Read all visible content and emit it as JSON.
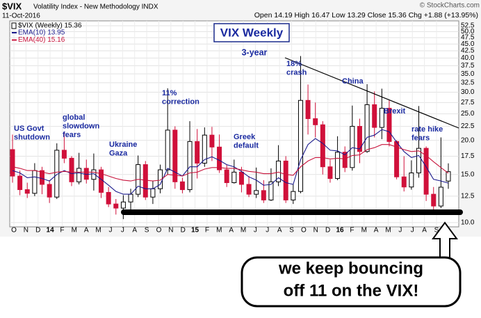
{
  "chart_data": {
    "type": "candlestick",
    "symbol": "$VIX",
    "title": "Volatility Index - New Methodology INDX",
    "date": "11-Oct-2016",
    "quote": "Open 14.19 High 16.47 Low 13.29 Close 15.36 Chg +1.88 (+13.95%)",
    "credit": "© StockCharts.com",
    "candle_label": "$VIX (Weekly) 15.36",
    "month_labels": [
      "O",
      "N",
      "D",
      "14",
      "F",
      "M",
      "A",
      "M",
      "J",
      "J",
      "A",
      "S",
      "O",
      "N",
      "D",
      "15",
      "F",
      "M",
      "A",
      "M",
      "J",
      "J",
      "A",
      "S",
      "O",
      "N",
      "D",
      "16",
      "F",
      "M",
      "A",
      "M",
      "J",
      "J",
      "A",
      "S"
    ],
    "open": [
      18.5,
      14.8,
      13.2,
      12.8,
      15.5,
      13.8,
      12.4,
      18.4,
      17.2,
      14.1,
      15.8,
      14.4,
      15.6,
      12.9,
      11.7,
      11.3,
      11.9,
      12.7,
      16.3,
      12.4,
      13.3,
      15.6,
      21.8,
      14.1,
      13.2,
      19.8,
      16.5,
      20.9,
      18.9,
      15.6,
      14,
      15.3,
      13.8,
      12.7,
      13.1,
      12.1,
      14.1,
      16.8,
      12.1,
      13,
      28,
      24,
      22.8,
      16,
      14.5,
      18.1,
      15.9,
      22.5,
      18.2,
      27,
      22.3,
      26.2,
      19.8,
      14.7,
      13.5,
      15.2,
      18.7,
      12.7,
      11.5,
      14.19
    ],
    "high": [
      21,
      15.5,
      14,
      16.5,
      16,
      14.3,
      19.5,
      21.5,
      17.5,
      18,
      17,
      17.9,
      16,
      13.5,
      12.2,
      12.6,
      13.3,
      17.6,
      16.8,
      14.2,
      16.3,
      31,
      22.5,
      14.6,
      23.5,
      22,
      22.3,
      22.4,
      21,
      16.3,
      17,
      16,
      14.8,
      15.9,
      14.3,
      15.8,
      19.2,
      17.5,
      13.8,
      40.7,
      32,
      27.5,
      23.5,
      17,
      20.7,
      19,
      26.8,
      24,
      32.1,
      30.2,
      30.9,
      28,
      20,
      17.5,
      16.9,
      26.7,
      19,
      13.5,
      20.5,
      16.47
    ],
    "low": [
      14,
      12.6,
      12.3,
      12.5,
      12.7,
      11.8,
      12.2,
      16.5,
      13.6,
      13.8,
      13.9,
      13.1,
      12.3,
      11.4,
      10.7,
      10.3,
      11.1,
      12.4,
      12.1,
      11.7,
      12.8,
      15,
      13.3,
      12.8,
      12.9,
      14.5,
      16,
      16.8,
      15.2,
      13.5,
      13.9,
      12.9,
      12.4,
      12.3,
      11.8,
      12,
      13.6,
      11.8,
      11.7,
      12.8,
      21,
      20.5,
      15,
      14,
      14.3,
      15.3,
      15.5,
      16.5,
      18,
      20.5,
      20.2,
      19,
      14.4,
      13,
      13.2,
      14.6,
      12,
      11,
      11.3,
      13.29
    ],
    "close": [
      14.8,
      13.2,
      12.8,
      15.5,
      13.8,
      12.4,
      18.4,
      17.2,
      14.1,
      15.8,
      14.4,
      15.6,
      12.9,
      11.7,
      11.3,
      11.9,
      12.7,
      16.3,
      12.4,
      13.3,
      15.6,
      21.8,
      14.1,
      13.2,
      19.8,
      16.5,
      20.9,
      18.9,
      15.6,
      14,
      15.3,
      13.8,
      12.7,
      13.1,
      12.1,
      14.1,
      16.8,
      12.1,
      13,
      28,
      24,
      22.8,
      16,
      14.5,
      18.1,
      15.9,
      22.5,
      18.2,
      27,
      22.3,
      26.2,
      19.8,
      14.7,
      13.5,
      15.2,
      18.7,
      12.7,
      11.5,
      13.48,
      15.36
    ],
    "series": [
      {
        "name": "EMA(10) 13.95",
        "color": "#1a1a8c",
        "values": [
          15.5,
          15.2,
          14.6,
          14.7,
          14.5,
          14.2,
          15,
          15.5,
          15.1,
          15.2,
          15,
          15.1,
          14.4,
          13.7,
          13,
          12.7,
          12.7,
          13.6,
          13.3,
          13.3,
          13.8,
          15.8,
          15.3,
          14.8,
          16,
          16,
          17,
          17.4,
          16.9,
          16.3,
          16,
          15.4,
          14.7,
          14.3,
          13.7,
          13.8,
          14.6,
          14,
          13.8,
          17,
          19.3,
          20.3,
          19.5,
          18.4,
          18.3,
          17.7,
          18.8,
          18.6,
          20.5,
          20.9,
          21.9,
          21.5,
          19.7,
          18.2,
          17.3,
          17.6,
          16,
          14.4,
          14.2,
          13.95
        ]
      },
      {
        "name": "EMA(40) 15.16",
        "color": "#c8143c",
        "values": [
          16,
          15.8,
          15.5,
          15.5,
          15.3,
          15.1,
          15.3,
          15.4,
          15.3,
          15.3,
          15.3,
          15.3,
          15.1,
          14.8,
          14.5,
          14.3,
          14.2,
          14.4,
          14.3,
          14.2,
          14.3,
          15,
          14.9,
          14.8,
          15.2,
          15.3,
          15.7,
          15.9,
          15.9,
          15.8,
          15.8,
          15.6,
          15.4,
          15.3,
          15.1,
          15.1,
          15.3,
          15,
          14.9,
          16,
          16.8,
          17.3,
          17.3,
          17.1,
          17.2,
          17.1,
          17.6,
          17.7,
          18.5,
          18.8,
          19.3,
          19.3,
          18.9,
          18.5,
          18.2,
          18.3,
          17.6,
          16.7,
          15.9,
          15.16
        ]
      }
    ],
    "log_scale": true,
    "ylim": [
      9.65,
      54.7
    ],
    "yticks": [
      {
        "value": 10,
        "label": "10.0"
      },
      {
        "value": 12.5,
        "label": "12.5"
      },
      {
        "value": 15,
        "label": "15.0"
      },
      {
        "value": 17.5,
        "label": "17.5"
      },
      {
        "value": 20,
        "label": "20.0"
      },
      {
        "value": 22.5,
        "label": "22.5"
      },
      {
        "value": 25,
        "label": "25.0"
      },
      {
        "value": 27.5,
        "label": "27.5"
      },
      {
        "value": 30,
        "label": "30.0"
      },
      {
        "value": 32.5,
        "label": "32.5"
      },
      {
        "value": 35,
        "label": "35.0"
      },
      {
        "value": 37.5,
        "label": "37.5"
      },
      {
        "value": 40,
        "label": "40.0"
      },
      {
        "value": 42.5,
        "label": "42.5"
      },
      {
        "value": 45,
        "label": "45.0"
      },
      {
        "value": 47.5,
        "label": "47.5"
      },
      {
        "value": 50,
        "label": "50.0"
      },
      {
        "value": 52.5,
        "label": "52.5"
      }
    ],
    "grid": true,
    "up_color": "#000000",
    "down_color": "#d0103a",
    "headline": "VIX Weekly",
    "annotations": [
      {
        "lines": [
          "3-year"
        ]
      },
      {
        "lines": [
          "18%",
          "crash"
        ]
      },
      {
        "lines": [
          "China"
        ]
      },
      {
        "lines": [
          "Brexit"
        ]
      },
      {
        "lines": [
          "rate hike",
          "fears"
        ]
      },
      {
        "lines": [
          "11%",
          "correction"
        ]
      },
      {
        "lines": [
          "US Govt",
          "shutdown"
        ]
      },
      {
        "lines": [
          "global",
          "slowdown",
          "fears"
        ]
      },
      {
        "lines": [
          "Ukraine",
          "Gaza"
        ]
      },
      {
        "lines": [
          "Greek",
          "default"
        ]
      }
    ],
    "callout": [
      "we keep bouncing",
      "off 11 on the VIX!"
    ]
  }
}
